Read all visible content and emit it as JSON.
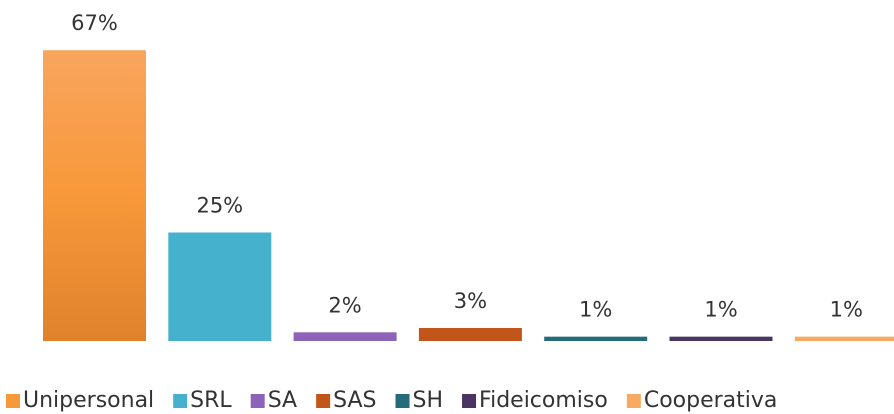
{
  "chart_data": {
    "type": "bar",
    "categories": [
      "Unipersonal",
      "SRL",
      "SA",
      "SAS",
      "SH",
      "Fideicomiso",
      "Cooperativa"
    ],
    "values": [
      67,
      25,
      2,
      3,
      1,
      1,
      1
    ],
    "value_labels": [
      "67%",
      "25%",
      "2%",
      "3%",
      "1%",
      "1%",
      "1%"
    ],
    "colors": [
      "#f7983a",
      "#46b1cd",
      "#8d62b9",
      "#c2561a",
      "#256b7b",
      "#4a3562",
      "#f8a962"
    ],
    "legend": "bottom"
  }
}
